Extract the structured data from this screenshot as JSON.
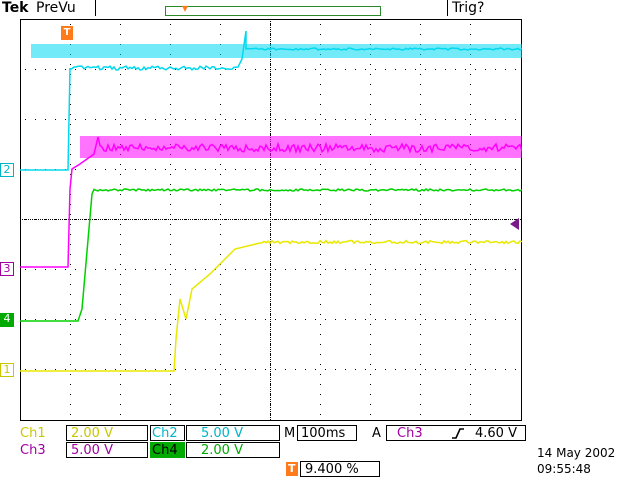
{
  "header": {
    "brand": "Tek",
    "mode": "PreVu",
    "trigger_status": "Trig?"
  },
  "markers": {
    "trigger_position": "T",
    "ch1": "1",
    "ch2": "2",
    "ch3": "3",
    "ch4": "4"
  },
  "channels": [
    {
      "name": "Ch1",
      "scale": "2.00 V",
      "color": "#c8c800"
    },
    {
      "name": "Ch2",
      "scale": "5.00 V",
      "color": "#00b4c8"
    },
    {
      "name": "Ch3",
      "scale": "5.00 V",
      "color": "#a000a0"
    },
    {
      "name": "Ch4",
      "scale": "2.00 V",
      "color": "#00aa00"
    }
  ],
  "timebase": {
    "prefix": "M",
    "value": "100ms"
  },
  "trigger": {
    "mode": "A",
    "source": "Ch3",
    "slope_icon": "rising-edge-icon",
    "level": "4.60 V"
  },
  "trigger_position_readout": {
    "icon": "T",
    "value": "9.400 %"
  },
  "datetime": {
    "date": "14 May 2002",
    "time": "09:55:48"
  },
  "colors": {
    "ch1": "#e8e800",
    "ch2": "#00d8f0",
    "ch3": "#ff00ff",
    "ch4": "#00d000",
    "trigger_orange": "#ff7a1a"
  }
}
